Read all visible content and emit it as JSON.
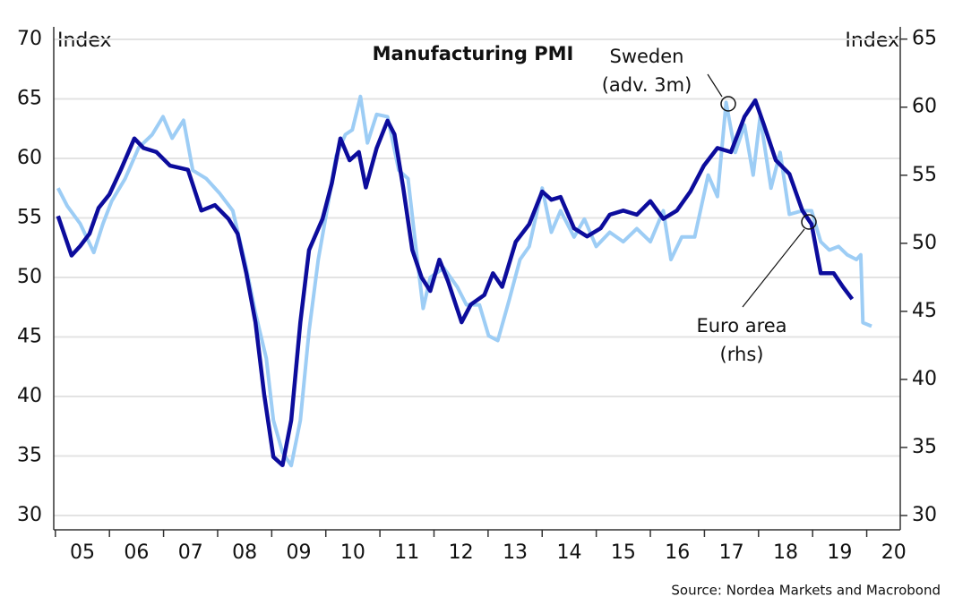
{
  "chart_data": {
    "type": "line",
    "title": "Manufacturing PMI",
    "y_label": "Index",
    "y2_label": "Index",
    "source": "Source: Nordea Markets and Macrobond",
    "xlim": [
      4.97,
      20.62
    ],
    "xticks": [
      {
        "value": 5.5,
        "label": "05"
      },
      {
        "value": 6.5,
        "label": "06"
      },
      {
        "value": 7.5,
        "label": "07"
      },
      {
        "value": 8.5,
        "label": "08"
      },
      {
        "value": 9.5,
        "label": "09"
      },
      {
        "value": 10.5,
        "label": "10"
      },
      {
        "value": 11.5,
        "label": "11"
      },
      {
        "value": 12.5,
        "label": "12"
      },
      {
        "value": 13.5,
        "label": "13"
      },
      {
        "value": 14.5,
        "label": "14"
      },
      {
        "value": 15.5,
        "label": "15"
      },
      {
        "value": 16.5,
        "label": "16"
      },
      {
        "value": 17.5,
        "label": "17"
      },
      {
        "value": 18.5,
        "label": "18"
      },
      {
        "value": 19.5,
        "label": "19"
      },
      {
        "value": 20.5,
        "label": "20"
      }
    ],
    "ylim": [
      28.8,
      71.05
    ],
    "yticks": [
      30,
      35,
      40,
      45,
      50,
      55,
      60,
      65,
      70
    ],
    "y2lim": [
      28.95,
      65.9
    ],
    "y2ticks": [
      30,
      35,
      40,
      45,
      50,
      55,
      60,
      65
    ],
    "grid": true,
    "annotations": [
      {
        "lines": [
          "Sweden",
          "(adv. 3m)"
        ]
      },
      {
        "lines": [
          "Euro area",
          "(rhs)"
        ]
      }
    ],
    "series": [
      {
        "name": "Sweden",
        "color": "#9dcdf5",
        "axis": "y",
        "x": [
          5.05,
          5.22,
          5.46,
          5.71,
          5.88,
          6.04,
          6.29,
          6.54,
          6.79,
          6.99,
          7.16,
          7.37,
          7.54,
          7.79,
          8.03,
          8.28,
          8.53,
          8.7,
          8.9,
          9.03,
          9.2,
          9.36,
          9.53,
          9.69,
          9.86,
          10.02,
          10.19,
          10.36,
          10.49,
          10.64,
          10.77,
          10.94,
          11.14,
          11.35,
          11.52,
          11.68,
          11.8,
          11.93,
          12.18,
          12.43,
          12.6,
          12.84,
          13.01,
          13.18,
          13.39,
          13.59,
          13.76,
          14.0,
          14.17,
          14.34,
          14.59,
          14.78,
          15.0,
          15.25,
          15.5,
          15.75,
          16.0,
          16.24,
          16.38,
          16.58,
          16.82,
          17.07,
          17.24,
          17.4,
          17.57,
          17.74,
          17.9,
          18.03,
          18.23,
          18.4,
          18.57,
          18.81,
          18.98,
          19.15,
          19.31,
          19.48,
          19.64,
          19.81,
          19.89,
          19.93,
          20.09
        ],
        "values": [
          57.5,
          56.0,
          54.5,
          52.1,
          54.5,
          56.4,
          58.3,
          60.9,
          62.0,
          63.5,
          61.7,
          63.2,
          59.0,
          58.3,
          57.1,
          55.6,
          50.8,
          47.0,
          43.2,
          38.0,
          35.3,
          34.2,
          38.0,
          45.5,
          51.5,
          55.6,
          60.2,
          62.0,
          62.4,
          65.2,
          61.3,
          63.7,
          63.5,
          59.0,
          58.3,
          51.9,
          47.4,
          50.0,
          50.8,
          49.2,
          47.7,
          47.7,
          45.1,
          44.7,
          48.1,
          51.5,
          52.6,
          57.5,
          53.8,
          55.6,
          53.4,
          54.9,
          52.6,
          53.8,
          53.0,
          54.1,
          53.0,
          55.6,
          51.5,
          53.4,
          53.4,
          58.6,
          56.8,
          64.7,
          60.5,
          62.8,
          58.6,
          63.5,
          57.5,
          60.5,
          55.3,
          55.6,
          55.6,
          53.0,
          52.3,
          52.6,
          51.9,
          51.5,
          51.9,
          46.2,
          45.9
        ]
      },
      {
        "name": "Euro area",
        "color": "#0c0c9c",
        "axis": "y2",
        "x": [
          5.05,
          5.3,
          5.46,
          5.63,
          5.8,
          6.0,
          6.21,
          6.46,
          6.63,
          6.87,
          7.12,
          7.45,
          7.7,
          7.95,
          8.2,
          8.37,
          8.53,
          8.7,
          8.86,
          9.03,
          9.2,
          9.36,
          9.53,
          9.69,
          9.94,
          10.11,
          10.27,
          10.44,
          10.61,
          10.74,
          10.94,
          11.14,
          11.27,
          11.43,
          11.6,
          11.77,
          11.93,
          12.1,
          12.26,
          12.51,
          12.68,
          12.93,
          13.09,
          13.26,
          13.51,
          13.76,
          14.0,
          14.17,
          14.34,
          14.59,
          14.83,
          15.08,
          15.25,
          15.5,
          15.75,
          16.0,
          16.24,
          16.49,
          16.74,
          16.99,
          17.24,
          17.49,
          17.74,
          17.94,
          18.1,
          18.32,
          18.57,
          18.81,
          18.98,
          19.15,
          19.39,
          19.56,
          19.73
        ],
        "values": [
          52.0,
          49.1,
          49.8,
          50.7,
          52.6,
          53.6,
          55.4,
          57.7,
          57.0,
          56.7,
          55.7,
          55.4,
          52.4,
          52.8,
          51.8,
          50.7,
          47.8,
          44.2,
          38.9,
          34.3,
          33.7,
          37.0,
          44.2,
          49.5,
          51.8,
          54.4,
          57.7,
          56.1,
          56.7,
          54.1,
          57.0,
          59.0,
          58.0,
          54.1,
          49.5,
          47.5,
          46.5,
          48.8,
          47.2,
          44.2,
          45.5,
          46.2,
          47.8,
          46.8,
          50.1,
          51.4,
          53.8,
          53.2,
          53.4,
          51.1,
          50.5,
          51.1,
          52.1,
          52.4,
          52.1,
          53.1,
          51.8,
          52.4,
          53.8,
          55.7,
          57.0,
          56.7,
          59.3,
          60.5,
          58.7,
          56.1,
          55.1,
          52.4,
          51.4,
          47.8,
          47.8,
          46.8,
          45.9
        ]
      }
    ]
  }
}
